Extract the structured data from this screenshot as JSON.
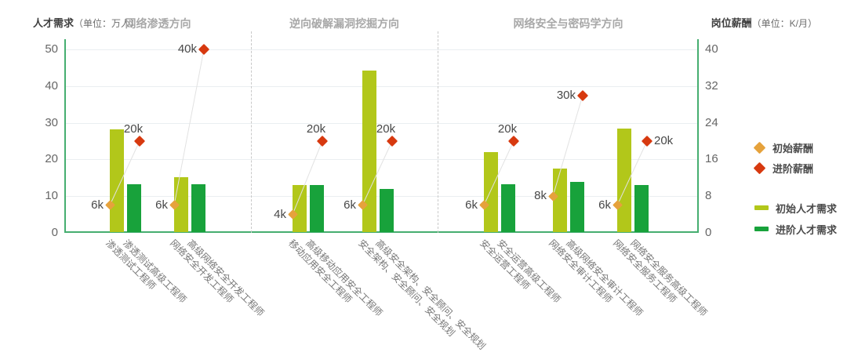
{
  "chart_data": {
    "type": "bar",
    "title_left": "人才需求",
    "title_left_unit": "（单位：万人）",
    "title_right": "岗位薪酬",
    "title_right_unit": "（单位：K/月）",
    "left_axis": {
      "label": "人才需求（单位：万人）",
      "ticks": [
        0,
        10,
        20,
        30,
        40,
        50
      ],
      "range": [
        0,
        50
      ]
    },
    "right_axis": {
      "label": "岗位薪酬（单位：K/月）",
      "ticks": [
        0,
        8,
        16,
        24,
        32,
        40
      ],
      "range": [
        0,
        40
      ]
    },
    "grid": true,
    "legend_position": "right",
    "colors": {
      "initial_salary": "#e6a23c",
      "advanced_salary": "#d7390f",
      "initial_demand": "#b2c71a",
      "advanced_demand": "#18a23b",
      "axis": "#46ae70"
    },
    "legend": {
      "items": [
        {
          "label": "初始薪酬",
          "marker": "diamond",
          "color_key": "initial_salary"
        },
        {
          "label": "进阶薪酬",
          "marker": "diamond",
          "color_key": "advanced_salary"
        },
        {
          "label": "初始人才需求",
          "marker": "bar",
          "color_key": "initial_demand"
        },
        {
          "label": "进阶人才需求",
          "marker": "bar",
          "color_key": "advanced_demand"
        }
      ]
    },
    "sections": [
      {
        "title": "网络渗透方向",
        "pairs": [
          {
            "initial_job": "渗透测试工程师",
            "advanced_job": "渗透测试高级工程师",
            "initial_demand_wan": 28.2,
            "advanced_demand_wan": 13.3,
            "initial_salary_k": 6,
            "advanced_salary_k": 20,
            "initial_salary_label": "6k",
            "advanced_salary_label": "20k",
            "advanced_label_side": "top"
          },
          {
            "initial_job": "网络安全开发工程师",
            "advanced_job": "高级网络安全开发工程师",
            "initial_demand_wan": 15.2,
            "advanced_demand_wan": 13.3,
            "initial_salary_k": 6,
            "advanced_salary_k": 40,
            "initial_salary_label": "6k",
            "advanced_salary_label": "40k",
            "advanced_label_side": "left"
          }
        ]
      },
      {
        "title": "逆向破解漏洞挖掘方向",
        "pairs": [
          {
            "initial_job": "移动应用安全工程师",
            "advanced_job": "高级移动应用安全工程师",
            "initial_demand_wan": 13.0,
            "advanced_demand_wan": 13.0,
            "initial_salary_k": 4,
            "advanced_salary_k": 20,
            "initial_salary_label": "4k",
            "advanced_salary_label": "20k",
            "advanced_label_side": "top"
          },
          {
            "initial_job": "安全架构、安全顾问、安全规划",
            "advanced_job": "高级安全架构、安全顾问、安全规划",
            "initial_demand_wan": 44.3,
            "advanced_demand_wan": 12.0,
            "initial_salary_k": 6,
            "advanced_salary_k": 20,
            "initial_salary_label": "6k",
            "advanced_salary_label": "20k",
            "advanced_label_side": "top"
          }
        ]
      },
      {
        "title": "网络安全与密码学方向",
        "pairs": [
          {
            "initial_job": "安全运营工程师",
            "advanced_job": "安全运营高级工程师",
            "initial_demand_wan": 22.0,
            "advanced_demand_wan": 13.3,
            "initial_salary_k": 6,
            "advanced_salary_k": 20,
            "initial_salary_label": "6k",
            "advanced_salary_label": "20k",
            "advanced_label_side": "top"
          },
          {
            "initial_job": "网络安全审计工程师",
            "advanced_job": "高级网络安全审计工程师",
            "initial_demand_wan": 17.5,
            "advanced_demand_wan": 13.9,
            "initial_salary_k": 8,
            "advanced_salary_k": 30,
            "initial_salary_label": "8k",
            "advanced_salary_label": "30k",
            "advanced_label_side": "left"
          },
          {
            "initial_job": "网络安全服务工程师",
            "advanced_job": "网络安全服务高级工程师",
            "initial_demand_wan": 28.4,
            "advanced_demand_wan": 13.0,
            "initial_salary_k": 6,
            "advanced_salary_k": 20,
            "initial_salary_label": "6k",
            "advanced_salary_label": "20k",
            "advanced_label_side": "right"
          }
        ]
      }
    ]
  }
}
